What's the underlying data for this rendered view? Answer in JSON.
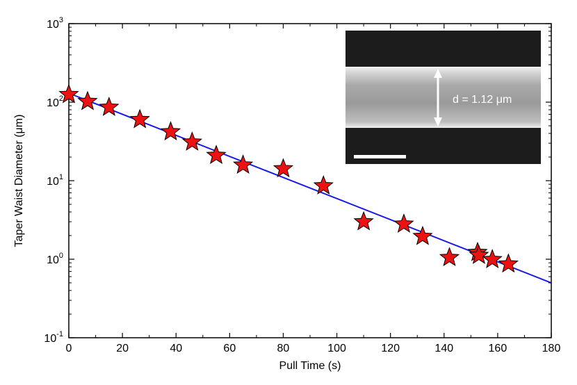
{
  "chart_data": {
    "type": "scatter",
    "xlabel": "Pull Time (s)",
    "ylabel": "Taper Waist Diameter (μm)",
    "xlim": [
      0,
      180
    ],
    "ylim": [
      0.1,
      1000
    ],
    "yscale": "log",
    "x_ticks": [
      0,
      20,
      40,
      60,
      80,
      100,
      120,
      140,
      160,
      180
    ],
    "y_ticks": [
      {
        "base": "10",
        "exp": "-1",
        "value": 0.1
      },
      {
        "base": "10",
        "exp": "0",
        "value": 1
      },
      {
        "base": "10",
        "exp": "1",
        "value": 10
      },
      {
        "base": "10",
        "exp": "2",
        "value": 100
      },
      {
        "base": "10",
        "exp": "3",
        "value": 1000
      }
    ],
    "grid": false,
    "series": [
      {
        "marker": "star",
        "color": "#ee1111",
        "points": [
          {
            "x": 0,
            "y": 125
          },
          {
            "x": 7,
            "y": 102
          },
          {
            "x": 15,
            "y": 86
          },
          {
            "x": 26.5,
            "y": 60
          },
          {
            "x": 38,
            "y": 42
          },
          {
            "x": 46,
            "y": 31
          },
          {
            "x": 55,
            "y": 21
          },
          {
            "x": 65,
            "y": 15.8
          },
          {
            "x": 80,
            "y": 14.2
          },
          {
            "x": 95,
            "y": 8.6
          },
          {
            "x": 110,
            "y": 3.0
          },
          {
            "x": 125,
            "y": 2.8
          },
          {
            "x": 132,
            "y": 1.95
          },
          {
            "x": 142,
            "y": 1.05
          },
          {
            "x": 152.5,
            "y": 1.22
          },
          {
            "x": 153,
            "y": 1.12
          },
          {
            "x": 158,
            "y": 0.99
          },
          {
            "x": 164,
            "y": 0.87
          }
        ]
      },
      {
        "type": "line",
        "color": "#1a1ae6",
        "points": [
          {
            "x": 0,
            "y": 130
          },
          {
            "x": 180,
            "y": 0.5
          }
        ]
      }
    ],
    "inset": {
      "annotation": "d = 1.12 μm"
    }
  }
}
